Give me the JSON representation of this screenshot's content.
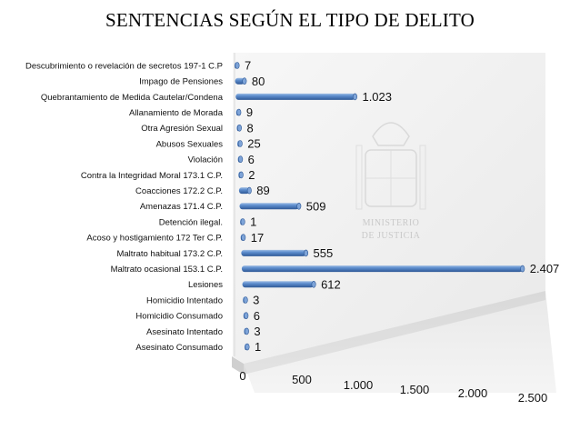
{
  "chart_data": {
    "type": "bar",
    "orientation": "horizontal",
    "title": "SENTENCIAS SEGÚN EL TIPO DE DELITO",
    "categories": [
      "Descubrimiento o revelación de secretos 197-1 C.P",
      "Impago de Pensiones",
      "Quebrantamiento de Medida Cautelar/Condena",
      "Allanamiento de Morada",
      "Otra Agresión Sexual",
      "Abusos Sexuales",
      "Violación",
      "Contra la Integridad Moral 173.1 C.P.",
      "Coacciones 172.2 C.P.",
      "Amenazas 171.4 C.P.",
      "Detención ilegal.",
      "Acoso y hostigamiento 172 Ter C.P.",
      "Maltrato habitual 173.2 C.P.",
      "Maltrato ocasional 153.1 C.P.",
      "Lesiones",
      "Homicidio Intentado",
      "Homicidio Consumado",
      "Asesinato Intentado",
      "Asesinato Consumado"
    ],
    "values": [
      7,
      80,
      1023,
      9,
      8,
      25,
      6,
      2,
      89,
      509,
      1,
      17,
      555,
      2407,
      612,
      3,
      6,
      3,
      1
    ],
    "value_labels": [
      "7",
      "80",
      "1.023",
      "9",
      "8",
      "25",
      "6",
      "2",
      "89",
      "509",
      "1",
      "17",
      "555",
      "2.407",
      "612",
      "3",
      "6",
      "3",
      "1"
    ],
    "xlim": [
      0,
      2500
    ],
    "xticks": [
      0,
      500,
      1000,
      1500,
      2000,
      2500
    ],
    "xtick_labels": [
      "0",
      "500",
      "1.000",
      "1.500",
      "2.000",
      "2.500"
    ],
    "xlabel": "",
    "ylabel": "",
    "grid": false,
    "legend": "none",
    "style": "3d-cylinder",
    "bar_color": "#4f81bd",
    "wall_color": "#f2f2f2"
  },
  "watermark": {
    "icon": "coat-of-arms-icon",
    "line1": "MINISTERIO",
    "line2": "DE JUSTICIA"
  }
}
